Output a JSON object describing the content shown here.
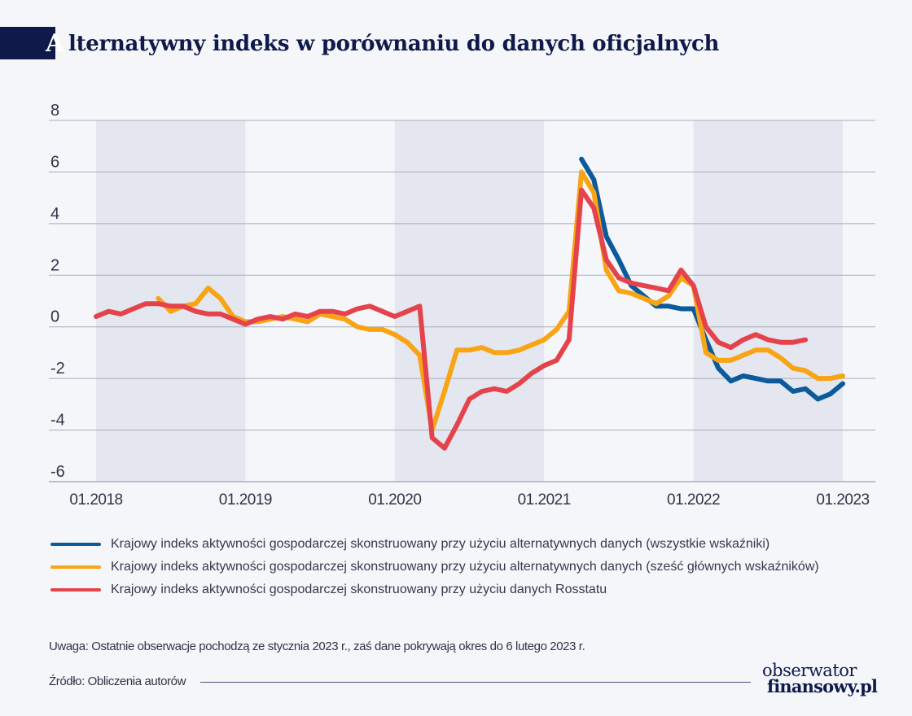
{
  "title_first_letter": "A",
  "title_rest": "lternatywny indeks w porównaniu do danych oficjalnych",
  "colors": {
    "background": "#f5f6fa",
    "title_bar": "#0f1a4b",
    "shade": "#e4e7ef",
    "grid": "#a9adb8"
  },
  "chart_data": {
    "type": "line",
    "title": "Alternatywny indeks w porównaniu do danych oficjalnych",
    "xlabel": "",
    "ylabel": "",
    "x_ticks": [
      "01.2018",
      "01.2019",
      "01.2020",
      "01.2021",
      "01.2022",
      "01.2023"
    ],
    "xlim": [
      "2018-01",
      "2023-02"
    ],
    "ylim": [
      -6,
      8
    ],
    "y_ticks": [
      8,
      6,
      4,
      2,
      0,
      -2,
      -4,
      -6
    ],
    "grid": true,
    "shaded_years": [
      2018,
      2020,
      2022
    ],
    "legend_position": "bottom",
    "series": [
      {
        "name": "Krajowy indeks aktywności gospodarczej skonstruowany przy użyciu alternatywnych danych (wszystkie wskaźniki)",
        "color": "#0d5a9a",
        "points": [
          [
            "2021-04",
            6.5
          ],
          [
            "2021-05",
            5.7
          ],
          [
            "2021-06",
            3.5
          ],
          [
            "2021-07",
            2.6
          ],
          [
            "2021-08",
            1.6
          ],
          [
            "2021-09",
            1.2
          ],
          [
            "2021-10",
            0.8
          ],
          [
            "2021-11",
            0.8
          ],
          [
            "2021-12",
            0.7
          ],
          [
            "2022-01",
            0.7
          ],
          [
            "2022-02",
            -0.5
          ],
          [
            "2022-03",
            -1.6
          ],
          [
            "2022-04",
            -2.1
          ],
          [
            "2022-05",
            -1.9
          ],
          [
            "2022-06",
            -2.0
          ],
          [
            "2022-07",
            -2.1
          ],
          [
            "2022-08",
            -2.1
          ],
          [
            "2022-09",
            -2.5
          ],
          [
            "2022-10",
            -2.4
          ],
          [
            "2022-11",
            -2.8
          ],
          [
            "2022-12",
            -2.6
          ],
          [
            "2023-01",
            -2.2
          ]
        ]
      },
      {
        "name": "Krajowy indeks aktywności gospodarczej skonstruowany przy użyciu alternatywnych danych (sześć głównych wskaźników)",
        "color": "#f8a414",
        "points": [
          [
            "2018-06",
            1.1
          ],
          [
            "2018-07",
            0.6
          ],
          [
            "2018-08",
            0.8
          ],
          [
            "2018-09",
            0.9
          ],
          [
            "2018-10",
            1.5
          ],
          [
            "2018-11",
            1.1
          ],
          [
            "2018-12",
            0.4
          ],
          [
            "2019-01",
            0.2
          ],
          [
            "2019-02",
            0.2
          ],
          [
            "2019-03",
            0.3
          ],
          [
            "2019-04",
            0.4
          ],
          [
            "2019-05",
            0.3
          ],
          [
            "2019-06",
            0.2
          ],
          [
            "2019-07",
            0.5
          ],
          [
            "2019-08",
            0.4
          ],
          [
            "2019-09",
            0.3
          ],
          [
            "2019-10",
            0.0
          ],
          [
            "2019-11",
            -0.1
          ],
          [
            "2019-12",
            -0.1
          ],
          [
            "2020-01",
            -0.3
          ],
          [
            "2020-02",
            -0.6
          ],
          [
            "2020-03",
            -1.1
          ],
          [
            "2020-04",
            -4.0
          ],
          [
            "2020-05",
            -2.5
          ],
          [
            "2020-06",
            -0.9
          ],
          [
            "2020-07",
            -0.9
          ],
          [
            "2020-08",
            -0.8
          ],
          [
            "2020-09",
            -1.0
          ],
          [
            "2020-10",
            -1.0
          ],
          [
            "2020-11",
            -0.9
          ],
          [
            "2020-12",
            -0.7
          ],
          [
            "2021-01",
            -0.5
          ],
          [
            "2021-02",
            -0.1
          ],
          [
            "2021-03",
            0.6
          ],
          [
            "2021-04",
            6.0
          ],
          [
            "2021-05",
            5.2
          ],
          [
            "2021-06",
            2.2
          ],
          [
            "2021-07",
            1.4
          ],
          [
            "2021-08",
            1.3
          ],
          [
            "2021-09",
            1.1
          ],
          [
            "2021-10",
            0.9
          ],
          [
            "2021-11",
            1.2
          ],
          [
            "2021-12",
            1.9
          ],
          [
            "2022-01",
            1.6
          ],
          [
            "2022-02",
            -1.0
          ],
          [
            "2022-03",
            -1.3
          ],
          [
            "2022-04",
            -1.3
          ],
          [
            "2022-05",
            -1.1
          ],
          [
            "2022-06",
            -0.9
          ],
          [
            "2022-07",
            -0.9
          ],
          [
            "2022-08",
            -1.2
          ],
          [
            "2022-09",
            -1.6
          ],
          [
            "2022-10",
            -1.7
          ],
          [
            "2022-11",
            -2.0
          ],
          [
            "2022-12",
            -2.0
          ],
          [
            "2023-01",
            -1.9
          ]
        ]
      },
      {
        "name": "Krajowy indeks aktywności gospodarczej skonstruowany przy użyciu danych Rosstatu",
        "color": "#e4434c",
        "points": [
          [
            "2018-01",
            0.4
          ],
          [
            "2018-02",
            0.6
          ],
          [
            "2018-03",
            0.5
          ],
          [
            "2018-04",
            0.7
          ],
          [
            "2018-05",
            0.9
          ],
          [
            "2018-06",
            0.9
          ],
          [
            "2018-07",
            0.8
          ],
          [
            "2018-08",
            0.8
          ],
          [
            "2018-09",
            0.6
          ],
          [
            "2018-10",
            0.5
          ],
          [
            "2018-11",
            0.5
          ],
          [
            "2018-12",
            0.3
          ],
          [
            "2019-01",
            0.1
          ],
          [
            "2019-02",
            0.3
          ],
          [
            "2019-03",
            0.4
          ],
          [
            "2019-04",
            0.3
          ],
          [
            "2019-05",
            0.5
          ],
          [
            "2019-06",
            0.4
          ],
          [
            "2019-07",
            0.6
          ],
          [
            "2019-08",
            0.6
          ],
          [
            "2019-09",
            0.5
          ],
          [
            "2019-10",
            0.7
          ],
          [
            "2019-11",
            0.8
          ],
          [
            "2019-12",
            0.6
          ],
          [
            "2020-01",
            0.4
          ],
          [
            "2020-02",
            0.6
          ],
          [
            "2020-03",
            0.8
          ],
          [
            "2020-04",
            -4.3
          ],
          [
            "2020-05",
            -4.7
          ],
          [
            "2020-06",
            -3.8
          ],
          [
            "2020-07",
            -2.8
          ],
          [
            "2020-08",
            -2.5
          ],
          [
            "2020-09",
            -2.4
          ],
          [
            "2020-10",
            -2.5
          ],
          [
            "2020-11",
            -2.2
          ],
          [
            "2020-12",
            -1.8
          ],
          [
            "2021-01",
            -1.5
          ],
          [
            "2021-02",
            -1.3
          ],
          [
            "2021-03",
            -0.5
          ],
          [
            "2021-04",
            5.3
          ],
          [
            "2021-05",
            4.6
          ],
          [
            "2021-06",
            2.6
          ],
          [
            "2021-07",
            1.9
          ],
          [
            "2021-08",
            1.7
          ],
          [
            "2021-09",
            1.6
          ],
          [
            "2021-10",
            1.5
          ],
          [
            "2021-11",
            1.4
          ],
          [
            "2021-12",
            2.2
          ],
          [
            "2022-01",
            1.6
          ],
          [
            "2022-02",
            0.0
          ],
          [
            "2022-03",
            -0.6
          ],
          [
            "2022-04",
            -0.8
          ],
          [
            "2022-05",
            -0.5
          ],
          [
            "2022-06",
            -0.3
          ],
          [
            "2022-07",
            -0.5
          ],
          [
            "2022-08",
            -0.6
          ],
          [
            "2022-09",
            -0.6
          ],
          [
            "2022-10",
            -0.5
          ]
        ]
      }
    ]
  },
  "legend": [
    {
      "label": "Krajowy indeks aktywności gospodarczej skonstruowany przy użyciu alternatywnych danych (wszystkie wskaźniki)",
      "color": "#0d5a9a"
    },
    {
      "label": "Krajowy indeks aktywności gospodarczej skonstruowany przy użyciu alternatywnych danych (sześć głównych wskaźników)",
      "color": "#f8a414"
    },
    {
      "label": "Krajowy indeks aktywności gospodarczej skonstruowany przy użyciu danych Rosstatu",
      "color": "#e4434c"
    }
  ],
  "note": "Uwaga: Ostatnie obserwacje pochodzą ze stycznia 2023 r., zaś dane pokrywają okres do 6 lutego 2023 r.",
  "source": "Źródło: Obliczenia autorów",
  "logo": {
    "line1": "obserwator",
    "line2": "finansowy.pl"
  }
}
